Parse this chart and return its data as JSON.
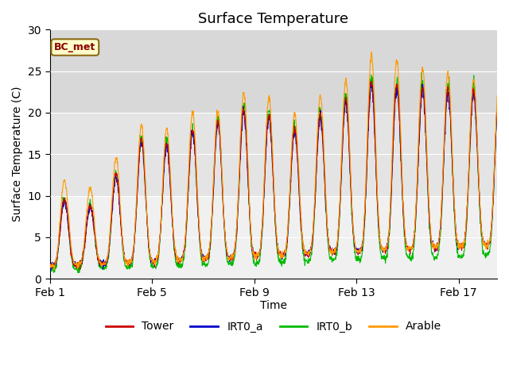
{
  "title": "Surface Temperature",
  "xlabel": "Time",
  "ylabel": "Surface Temperature (C)",
  "ylim": [
    0,
    30
  ],
  "xlim_days": [
    0,
    17.5
  ],
  "x_ticks_days": [
    0,
    4,
    8,
    12,
    16
  ],
  "x_tick_labels": [
    "Feb 1",
    "Feb 5",
    "Feb 9",
    "Feb 13",
    "Feb 17"
  ],
  "annotation_text": "BC_met",
  "lines": {
    "Tower": {
      "color": "#cc0000",
      "zorder": 4
    },
    "IRT0_a": {
      "color": "#0000cc",
      "zorder": 3
    },
    "IRT0_b": {
      "color": "#00bb00",
      "zorder": 2
    },
    "Arable": {
      "color": "#ff9900",
      "zorder": 5
    }
  },
  "legend_order": [
    "Tower",
    "IRT0_a",
    "IRT0_b",
    "Arable"
  ],
  "background_bands": [
    {
      "ymin": 20,
      "ymax": 30,
      "color": "#d8d8d8"
    },
    {
      "ymin": 10,
      "ymax": 20,
      "color": "#e4e4e4"
    },
    {
      "ymin": 0,
      "ymax": 10,
      "color": "#f0f0f0"
    }
  ],
  "fig_bg": "#ffffff",
  "title_fontsize": 13,
  "label_fontsize": 10,
  "tick_fontsize": 10,
  "legend_fontsize": 10
}
